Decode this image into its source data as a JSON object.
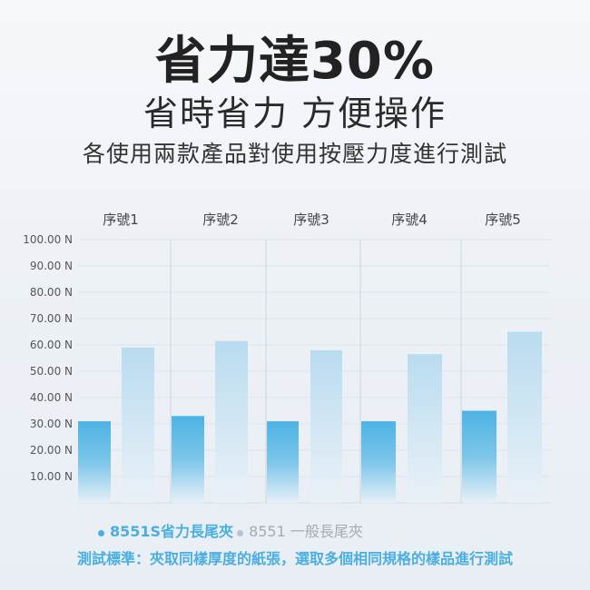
{
  "header": {
    "title": "省力達30%",
    "subtitle": "省時省力 方便操作",
    "description": "各使用兩款產品對使用按壓力度進行測試"
  },
  "chart_data": {
    "type": "bar",
    "categories": [
      "序號1",
      "序號2",
      "序號3",
      "序號4",
      "序號5"
    ],
    "series": [
      {
        "name": "8551S省力長尾夾",
        "values": [
          31,
          33,
          31,
          31,
          35
        ],
        "color": "#4db3e3"
      },
      {
        "name": "8551 一般長尾夾",
        "values": [
          59,
          61.5,
          58,
          56.5,
          65
        ],
        "color": "#b9dcf0"
      }
    ],
    "yticks": [
      "100.00 N",
      "90.00 N",
      "80.00 N",
      "70.00 N",
      "60.00 N",
      "50.00 N",
      "40.00 N",
      "30.00 N",
      "20.00 N",
      "10.00 N"
    ],
    "ytick_values": [
      100,
      90,
      80,
      70,
      60,
      50,
      40,
      30,
      20,
      10
    ],
    "ylim": [
      0,
      100
    ],
    "grid": true,
    "legend_position": "bottom"
  },
  "footer": {
    "note": "測試標準：夾取同樣厚度的紙張，選取多個相同規格的樣品進行測試"
  }
}
